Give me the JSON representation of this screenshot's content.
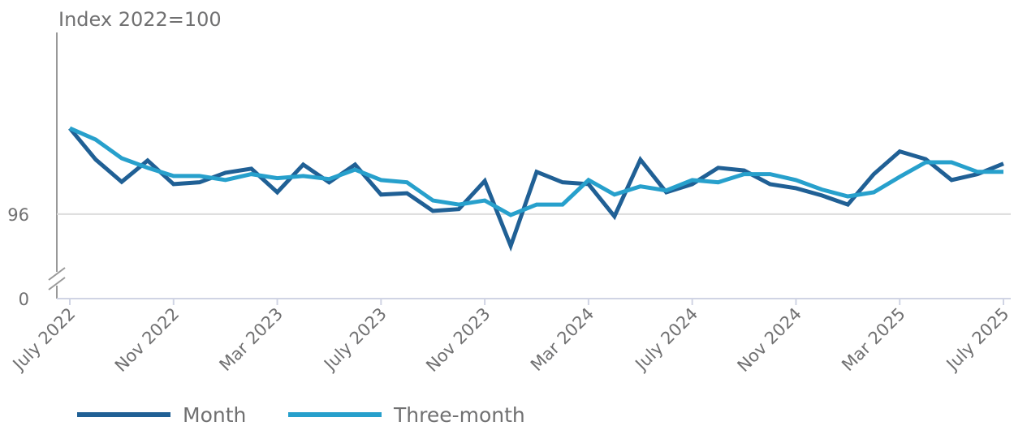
{
  "chart_data": {
    "type": "line",
    "y_label": "Index 2022=100",
    "categories": [
      "July 2022",
      null,
      null,
      null,
      "Nov 2022",
      null,
      null,
      null,
      "Mar 2023",
      null,
      null,
      null,
      "July 2023",
      null,
      null,
      null,
      "Nov 2023",
      null,
      null,
      null,
      "Mar 2024",
      null,
      null,
      null,
      "July 2024",
      null,
      null,
      null,
      "Nov 2024",
      null,
      null,
      null,
      "Mar 2025",
      null,
      null,
      null,
      "July 2025"
    ],
    "series": [
      {
        "name": "Month",
        "color": "#206095",
        "values": [
          97.89,
          97.2,
          96.71,
          97.18,
          96.66,
          96.7,
          96.91,
          97.0,
          96.48,
          97.09,
          96.7,
          97.09,
          96.43,
          96.46,
          96.07,
          96.11,
          96.73,
          95.3,
          96.93,
          96.7,
          96.66,
          95.95,
          97.2,
          96.48,
          96.66,
          97.02,
          96.96,
          96.66,
          96.57,
          96.41,
          96.21,
          96.88,
          97.38,
          97.21,
          96.75,
          96.88,
          97.11
        ]
      },
      {
        "name": "Three-month",
        "color": "#27a0cc",
        "values": [
          97.89,
          97.64,
          97.23,
          97.02,
          96.84,
          96.84,
          96.75,
          96.88,
          96.79,
          96.84,
          96.77,
          96.98,
          96.75,
          96.7,
          96.3,
          96.21,
          96.3,
          95.98,
          96.21,
          96.21,
          96.75,
          96.43,
          96.61,
          96.52,
          96.75,
          96.7,
          96.88,
          96.88,
          96.75,
          96.54,
          96.39,
          96.48,
          96.82,
          97.14,
          97.14,
          96.93,
          96.93
        ]
      }
    ],
    "ylim": [
      94.8,
      100
    ],
    "yticks": [
      0,
      96
    ],
    "axis_break": true,
    "grid": true
  }
}
